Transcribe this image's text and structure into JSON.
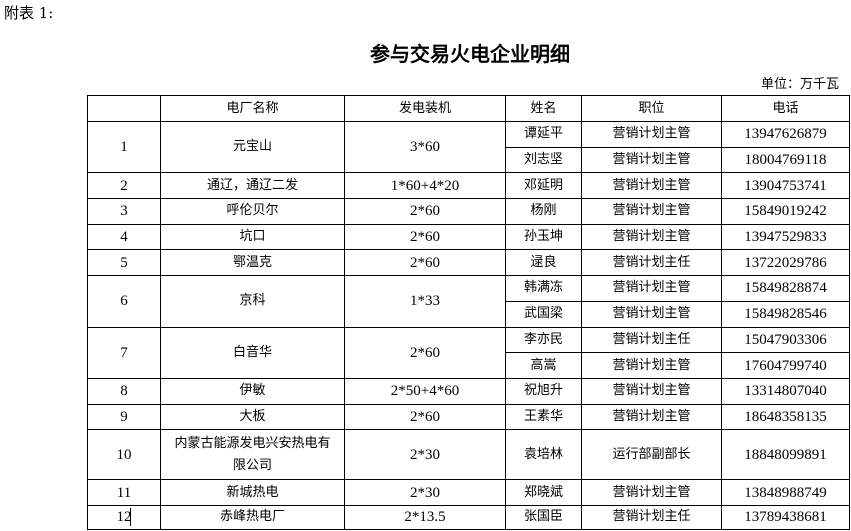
{
  "annex_label": "附表 1:",
  "title": "参与交易火电企业明细",
  "unit": "单位：万千瓦",
  "headers": [
    "",
    "电厂名称",
    "发电装机",
    "姓名",
    "职位",
    "电话"
  ],
  "rows": [
    {
      "no": "1",
      "plant": "元宝山",
      "capacity": "3*60",
      "contacts": [
        {
          "name": "谭延平",
          "position": "营销计划主管",
          "phone": "13947626879"
        },
        {
          "name": "刘志坚",
          "position": "营销计划主管",
          "phone": "18004769118"
        }
      ]
    },
    {
      "no": "2",
      "plant": "通辽，通辽二发",
      "capacity": "1*60+4*20",
      "contacts": [
        {
          "name": "邓延明",
          "position": "营销计划主管",
          "phone": "13904753741"
        }
      ]
    },
    {
      "no": "3",
      "plant": "呼伦贝尔",
      "capacity": "2*60",
      "contacts": [
        {
          "name": "杨刚",
          "position": "营销计划主管",
          "phone": "15849019242"
        }
      ]
    },
    {
      "no": "4",
      "plant": "坑口",
      "capacity": "2*60",
      "contacts": [
        {
          "name": "孙玉坤",
          "position": "营销计划主管",
          "phone": "13947529833"
        }
      ]
    },
    {
      "no": "5",
      "plant": "鄂温克",
      "capacity": "2*60",
      "contacts": [
        {
          "name": "逯良",
          "position": "营销计划主任",
          "phone": "13722029786"
        }
      ]
    },
    {
      "no": "6",
      "plant": "京科",
      "capacity": "1*33",
      "contacts": [
        {
          "name": "韩满冻",
          "position": "营销计划主管",
          "phone": "15849828874"
        },
        {
          "name": "武国梁",
          "position": "营销计划主管",
          "phone": "15849828546"
        }
      ]
    },
    {
      "no": "7",
      "plant": "白音华",
      "capacity": "2*60",
      "contacts": [
        {
          "name": "李亦民",
          "position": "营销计划主任",
          "phone": "15047903306"
        },
        {
          "name": "高嵩",
          "position": "营销计划主管",
          "phone": "17604799740"
        }
      ]
    },
    {
      "no": "8",
      "plant": "伊敏",
      "capacity": "2*50+4*60",
      "contacts": [
        {
          "name": "祝旭升",
          "position": "营销计划主管",
          "phone": "13314807040"
        }
      ]
    },
    {
      "no": "9",
      "plant": "大板",
      "capacity": "2*60",
      "contacts": [
        {
          "name": "王素华",
          "position": "营销计划主管",
          "phone": "18648358135"
        }
      ]
    },
    {
      "no": "10",
      "plant": "内蒙古能源发电兴安热电有限公司",
      "capacity": "2*30",
      "contacts": [
        {
          "name": "袁培林",
          "position": "运行部副部长",
          "phone": "18848099891"
        }
      ]
    },
    {
      "no": "11",
      "plant": "新城热电",
      "capacity": "2*30",
      "contacts": [
        {
          "name": "郑晓斌",
          "position": "营销计划主管",
          "phone": "13848988749"
        }
      ]
    },
    {
      "no": "12",
      "plant": "赤峰热电厂",
      "capacity": "2*13.5",
      "contacts": [
        {
          "name": "张国臣",
          "position": "营销计划主任",
          "phone": "13789438681"
        }
      ]
    }
  ]
}
